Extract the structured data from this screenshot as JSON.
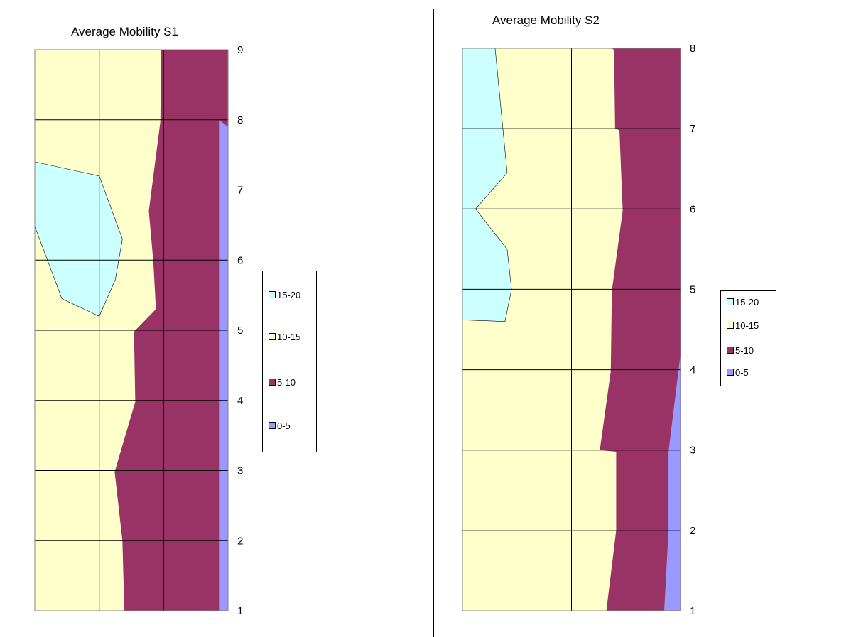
{
  "colors": {
    "15-20": "#ccffff",
    "10-15": "#ffffcc",
    "5-10": "#993366",
    "0-5": "#9999ff"
  },
  "chart_data": [
    {
      "type": "contour",
      "title": "Average Mobility S1",
      "ylim": [
        1,
        9
      ],
      "y_ticks": [
        1,
        2,
        3,
        4,
        5,
        6,
        7,
        8,
        9
      ],
      "x_columns": 3,
      "legend": [
        "15-20",
        "10-15",
        "5-10",
        "0-5"
      ],
      "legend_position": "right",
      "grid": true,
      "regions": [
        {
          "band": "10-15",
          "x": [
            0,
            3,
            3,
            0
          ],
          "y": [
            1,
            1,
            9,
            9
          ]
        },
        {
          "band": "5-10",
          "x": [
            1.39,
            1.36,
            1.24,
            1.56,
            1.54,
            1.88,
            1.84,
            1.77,
            1.95,
            1.96,
            3,
            3,
            3
          ],
          "y": [
            1,
            2,
            2.98,
            3.98,
            4.98,
            5.3,
            5.98,
            6.7,
            7.98,
            9,
            9,
            1,
            1
          ]
        },
        {
          "band": "0-5",
          "x": [
            2.86,
            2.86,
            2.86,
            3,
            3,
            2.86,
            2.86
          ],
          "y": [
            1,
            3.98,
            8.0,
            7.9,
            1,
            1,
            1
          ]
        },
        {
          "band": "15-20",
          "x": [
            0,
            1.0,
            1.36,
            1.25,
            1.0,
            0.42,
            0
          ],
          "y": [
            7.4,
            7.2,
            6.3,
            5.72,
            5.2,
            5.45,
            6.48
          ]
        }
      ]
    },
    {
      "type": "contour",
      "title": "Average Mobility S2",
      "ylim": [
        1,
        8
      ],
      "y_ticks": [
        1,
        2,
        3,
        4,
        5,
        6,
        7,
        8
      ],
      "x_columns": 2,
      "legend": [
        "15-20",
        "10-15",
        "5-10",
        "0-5"
      ],
      "legend_position": "right",
      "grid": true,
      "regions": [
        {
          "band": "10-15",
          "x": [
            0,
            2,
            2,
            0
          ],
          "y": [
            1,
            1,
            8,
            8
          ]
        },
        {
          "band": "5-10",
          "x": [
            1.32,
            1.41,
            1.41,
            1.26,
            1.36,
            1.37,
            1.47,
            1.44,
            1.4,
            1.39,
            1.37,
            2,
            2,
            2
          ],
          "y": [
            1,
            2,
            2.98,
            3.0,
            3.98,
            4.98,
            5.98,
            6.98,
            7.0,
            7.98,
            8,
            8,
            1,
            1
          ]
        },
        {
          "band": "0-5",
          "x": [
            1.85,
            1.89,
            1.89,
            2,
            2,
            1.85
          ],
          "y": [
            1,
            2,
            2.98,
            4.2,
            1,
            1
          ]
        },
        {
          "band": "15-20",
          "x": [
            0,
            0.3,
            0.41,
            0.12,
            0.41,
            0.45,
            0.39,
            0,
            0
          ],
          "y": [
            8,
            8,
            6.45,
            6.0,
            5.5,
            5.0,
            4.6,
            4.62,
            8
          ]
        }
      ]
    }
  ]
}
